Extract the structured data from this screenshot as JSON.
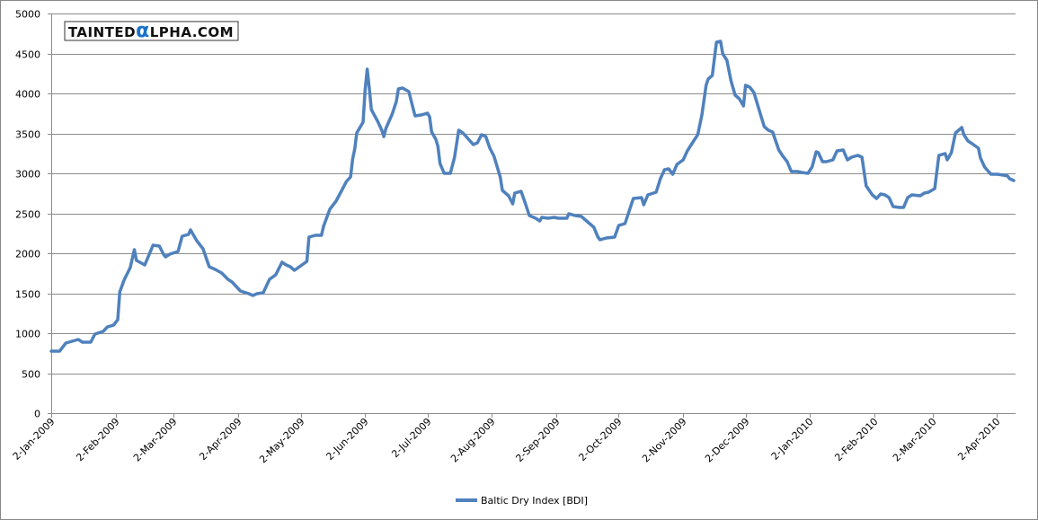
{
  "chart_data": {
    "type": "line",
    "title": "",
    "xlabel": "",
    "ylabel": "",
    "ylim": [
      0,
      5000
    ],
    "yticks": [
      "0",
      "500",
      "1000",
      "1500",
      "2000",
      "2500",
      "3000",
      "3500",
      "4000",
      "4500",
      "5000"
    ],
    "xlim": [
      "2009-01-02",
      "2010-04-10"
    ],
    "xticks": [
      {
        "date": "2009-01-02",
        "label": "2-Jan-2009"
      },
      {
        "date": "2009-02-02",
        "label": "2-Feb-2009"
      },
      {
        "date": "2009-03-02",
        "label": "2-Mar-2009"
      },
      {
        "date": "2009-04-02",
        "label": "2-Apr-2009"
      },
      {
        "date": "2009-05-02",
        "label": "2-May-2009"
      },
      {
        "date": "2009-06-02",
        "label": "2-Jun-2009"
      },
      {
        "date": "2009-07-02",
        "label": "2-Jul-2009"
      },
      {
        "date": "2009-08-02",
        "label": "2-Aug-2009"
      },
      {
        "date": "2009-09-02",
        "label": "2-Sep-2009"
      },
      {
        "date": "2009-10-02",
        "label": "2-Oct-2009"
      },
      {
        "date": "2009-11-02",
        "label": "2-Nov-2009"
      },
      {
        "date": "2009-12-02",
        "label": "2-Dec-2009"
      },
      {
        "date": "2010-01-02",
        "label": "2-Jan-2010"
      },
      {
        "date": "2010-02-02",
        "label": "2-Feb-2010"
      },
      {
        "date": "2010-03-02",
        "label": "2-Mar-2010"
      },
      {
        "date": "2010-04-02",
        "label": "2-Apr-2010"
      }
    ],
    "grid": true,
    "legend": "bottom",
    "series": [
      {
        "name": "Baltic Dry Index [BDI]",
        "color": "#4F81BD",
        "dates": [
          "2009-01-02",
          "2009-01-06",
          "2009-01-09",
          "2009-01-12",
          "2009-01-15",
          "2009-01-17",
          "2009-01-21",
          "2009-01-23",
          "2009-01-27",
          "2009-01-29",
          "2009-02-01",
          "2009-02-03",
          "2009-02-04",
          "2009-02-06",
          "2009-02-09",
          "2009-02-11",
          "2009-02-12",
          "2009-02-16",
          "2009-02-20",
          "2009-02-23",
          "2009-02-25",
          "2009-02-26",
          "2009-02-28",
          "2009-03-04",
          "2009-03-06",
          "2009-03-09",
          "2009-03-10",
          "2009-03-13",
          "2009-03-16",
          "2009-03-19",
          "2009-03-22",
          "2009-03-25",
          "2009-03-28",
          "2009-03-30",
          "2009-04-03",
          "2009-04-07",
          "2009-04-09",
          "2009-04-11",
          "2009-04-14",
          "2009-04-17",
          "2009-04-20",
          "2009-04-23",
          "2009-04-25",
          "2009-04-27",
          "2009-04-29",
          "2009-05-02",
          "2009-05-05",
          "2009-05-06",
          "2009-05-09",
          "2009-05-12",
          "2009-05-13",
          "2009-05-16",
          "2009-05-19",
          "2009-05-22",
          "2009-05-24",
          "2009-05-26",
          "2009-05-27",
          "2009-05-28",
          "2009-05-29",
          "2009-06-01",
          "2009-06-02",
          "2009-06-03",
          "2009-06-04",
          "2009-06-05",
          "2009-06-08",
          "2009-06-10",
          "2009-06-11",
          "2009-06-12",
          "2009-06-15",
          "2009-06-17",
          "2009-06-18",
          "2009-06-20",
          "2009-06-23",
          "2009-06-26",
          "2009-06-29",
          "2009-07-02",
          "2009-07-03",
          "2009-07-04",
          "2009-07-06",
          "2009-07-07",
          "2009-07-08",
          "2009-07-10",
          "2009-07-13",
          "2009-07-15",
          "2009-07-17",
          "2009-07-19",
          "2009-07-21",
          "2009-07-24",
          "2009-07-26",
          "2009-07-28",
          "2009-07-30",
          "2009-08-01",
          "2009-08-03",
          "2009-08-06",
          "2009-08-07",
          "2009-08-10",
          "2009-08-12",
          "2009-08-13",
          "2009-08-16",
          "2009-08-18",
          "2009-08-20",
          "2009-08-23",
          "2009-08-25",
          "2009-08-26",
          "2009-08-29",
          "2009-09-01",
          "2009-09-03",
          "2009-09-07",
          "2009-09-08",
          "2009-09-11",
          "2009-09-14",
          "2009-09-16",
          "2009-09-18",
          "2009-09-20",
          "2009-09-22",
          "2009-09-23",
          "2009-09-26",
          "2009-09-30",
          "2009-10-02",
          "2009-10-05",
          "2009-10-07",
          "2009-10-09",
          "2009-10-13",
          "2009-10-14",
          "2009-10-16",
          "2009-10-20",
          "2009-10-22",
          "2009-10-24",
          "2009-10-26",
          "2009-10-28",
          "2009-10-30",
          "2009-11-02",
          "2009-11-04",
          "2009-11-07",
          "2009-11-09",
          "2009-11-11",
          "2009-11-13",
          "2009-11-14",
          "2009-11-16",
          "2009-11-18",
          "2009-11-20",
          "2009-11-21",
          "2009-11-23",
          "2009-11-25",
          "2009-11-27",
          "2009-11-29",
          "2009-12-01",
          "2009-12-02",
          "2009-12-04",
          "2009-12-06",
          "2009-12-09",
          "2009-12-11",
          "2009-12-13",
          "2009-12-15",
          "2009-12-18",
          "2009-12-20",
          "2009-12-22",
          "2009-12-24",
          "2009-12-27",
          "2009-12-29",
          "2010-01-01",
          "2010-01-03",
          "2010-01-05",
          "2010-01-06",
          "2010-01-08",
          "2010-01-10",
          "2010-01-13",
          "2010-01-15",
          "2010-01-18",
          "2010-01-20",
          "2010-01-22",
          "2010-01-25",
          "2010-01-27",
          "2010-01-29",
          "2010-02-01",
          "2010-02-03",
          "2010-02-05",
          "2010-02-07",
          "2010-02-09",
          "2010-02-11",
          "2010-02-14",
          "2010-02-16",
          "2010-02-18",
          "2010-02-20",
          "2010-02-24",
          "2010-02-26",
          "2010-02-28",
          "2010-03-03",
          "2010-03-05",
          "2010-03-08",
          "2010-03-09",
          "2010-03-11",
          "2010-03-13",
          "2010-03-16",
          "2010-03-17",
          "2010-03-19",
          "2010-03-21",
          "2010-03-24",
          "2010-03-25",
          "2010-03-27",
          "2010-03-30",
          "2010-04-02",
          "2010-04-05",
          "2010-04-07",
          "2010-04-08",
          "2010-04-10"
        ],
        "values": [
          775,
          775,
          876,
          899,
          921,
          888,
          888,
          989,
          1022,
          1079,
          1101,
          1169,
          1517,
          1663,
          1820,
          2045,
          1910,
          1854,
          2101,
          2090,
          1989,
          1955,
          1989,
          2022,
          2213,
          2236,
          2292,
          2157,
          2056,
          1831,
          1797,
          1753,
          1674,
          1640,
          1528,
          1494,
          1472,
          1494,
          1506,
          1674,
          1730,
          1888,
          1854,
          1831,
          1787,
          1843,
          1899,
          2202,
          2225,
          2225,
          2337,
          2551,
          2652,
          2798,
          2899,
          2955,
          3180,
          3303,
          3506,
          3640,
          4045,
          4303,
          4067,
          3798,
          3652,
          3539,
          3460,
          3562,
          3742,
          3898,
          4056,
          4067,
          4022,
          3719,
          3730,
          3753,
          3708,
          3517,
          3427,
          3337,
          3124,
          3000,
          3000,
          3202,
          3539,
          3506,
          3449,
          3360,
          3382,
          3483,
          3461,
          3315,
          3213,
          2955,
          2787,
          2719,
          2618,
          2753,
          2775,
          2629,
          2472,
          2438,
          2404,
          2449,
          2438,
          2449,
          2438,
          2438,
          2494,
          2472,
          2461,
          2416,
          2371,
          2326,
          2202,
          2169,
          2191,
          2202,
          2348,
          2371,
          2528,
          2685,
          2697,
          2607,
          2730,
          2764,
          2933,
          3045,
          3056,
          2989,
          3112,
          3169,
          3281,
          3404,
          3483,
          3730,
          4101,
          4180,
          4225,
          4640,
          4652,
          4494,
          4416,
          4157,
          3978,
          3933,
          3843,
          4101,
          4079,
          4011,
          3753,
          3584,
          3539,
          3517,
          3292,
          3213,
          3146,
          3022,
          3022,
          3011,
          3000,
          3079,
          3270,
          3258,
          3146,
          3146,
          3169,
          3281,
          3292,
          3169,
          3202,
          3225,
          3202,
          2843,
          2730,
          2685,
          2742,
          2730,
          2697,
          2584,
          2573,
          2573,
          2697,
          2730,
          2719,
          2753,
          2764,
          2809,
          3225,
          3247,
          3169,
          3258,
          3506,
          3573,
          3483,
          3404,
          3371,
          3315,
          3191,
          3079,
          2989,
          2989,
          2978,
          2967,
          2933,
          2910
        ]
      }
    ]
  },
  "watermark": {
    "text_before": "TAINTED",
    "alpha": "α",
    "text_after": "LPHA.COM",
    "color": "#1a73c8"
  }
}
